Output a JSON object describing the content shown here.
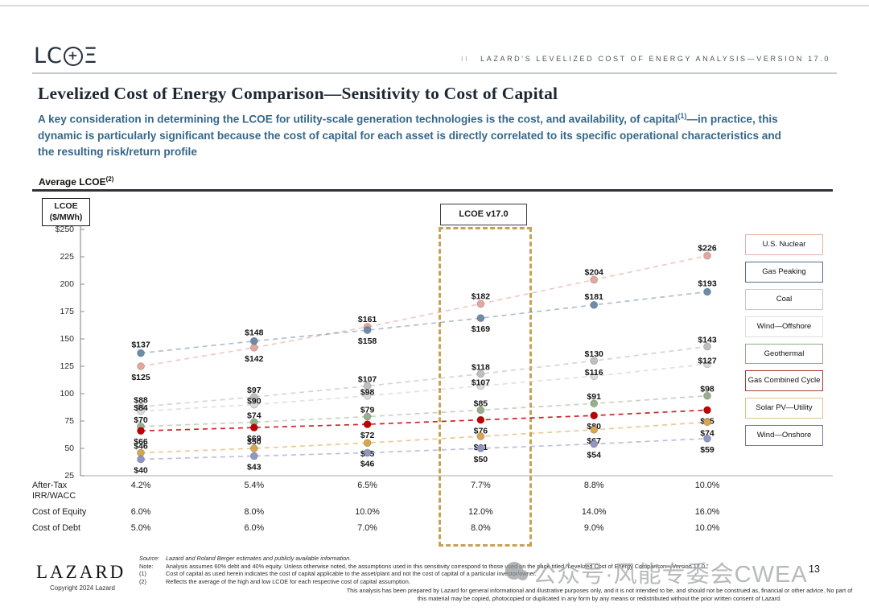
{
  "header": {
    "logo": {
      "left": "LC",
      "plus": "+",
      "xi": "Ξ"
    },
    "eyebrow_prefix": "II",
    "eyebrow": "LAZARD'S LEVELIZED COST OF ENERGY ANALYSIS—VERSION 17.0"
  },
  "title": "Levelized Cost of Energy Comparison—Sensitivity to Cost of Capital",
  "subtitle": {
    "before_sup": "A key consideration in determining the LCOE for utility-scale generation technologies is the cost, and availability, of capital",
    "sup": "(1)",
    "after_sup": "—in practice, this dynamic is particularly significant because the cost of capital for each asset is directly correlated to its specific operational characteristics and the resulting risk/return profile"
  },
  "section_label": {
    "text": "Average LCOE",
    "sup": "(2)"
  },
  "chart_data": {
    "type": "line",
    "title": "Average LCOE",
    "y_axis": {
      "label_line1": "LCOE",
      "label_line2": "($/MWh)",
      "ticks": [
        "$250",
        "225",
        "200",
        "175",
        "150",
        "125",
        "100",
        "75",
        "50",
        "25"
      ],
      "tick_values": [
        250,
        225,
        200,
        175,
        150,
        125,
        100,
        75,
        50,
        25
      ],
      "min": 25,
      "max": 250
    },
    "x_categories": [
      "4.2%",
      "5.4%",
      "6.5%",
      "7.7%",
      "8.8%",
      "10.0%"
    ],
    "series": [
      {
        "name": "U.S. Nuclear",
        "color": "#E5A79D",
        "line_opacity": 0.6,
        "values": [
          125,
          142,
          161,
          182,
          204,
          226
        ],
        "label_pos": [
          "B",
          "B",
          "A",
          "A",
          "A",
          "A"
        ],
        "dy_above": -9,
        "dy_below": 14
      },
      {
        "name": "Gas Peaking",
        "color": "#6C8CA8",
        "line_opacity": 0.55,
        "values": [
          137,
          148,
          158,
          169,
          181,
          193
        ],
        "label_pos": [
          "A",
          "A",
          "B",
          "B",
          "A",
          "A"
        ],
        "dy_above": -10,
        "dy_below": 14
      },
      {
        "name": "Coal",
        "color": "#BFBFBF",
        "line_opacity": 0.65,
        "values": [
          88,
          97,
          107,
          118,
          130,
          143
        ],
        "label_pos": [
          "A",
          "A",
          "A",
          "A",
          "A",
          "A"
        ],
        "dy_above": -8,
        "dy_below": 14
      },
      {
        "name": "Wind—Offshore",
        "color": "#DADADA",
        "line_opacity": 0.8,
        "values": [
          84,
          90,
          98,
          107,
          116,
          127
        ],
        "label_pos": [
          "A",
          "A",
          "A",
          "A",
          "A",
          "A"
        ],
        "dy_above": -4,
        "dy_below": 14
      },
      {
        "name": "Geothermal",
        "color": "#96B08D",
        "line_opacity": 0.55,
        "values": [
          70,
          74,
          79,
          85,
          91,
          98
        ],
        "label_pos": [
          "A",
          "A",
          "A",
          "A",
          "A",
          "A"
        ],
        "dy_above": -8,
        "dy_below": 14
      },
      {
        "name": "Gas Combined Cycle",
        "color": "#C00000",
        "line_opacity": 0.85,
        "values": [
          66,
          69,
          72,
          76,
          80,
          85
        ],
        "label_pos": [
          "B",
          "B",
          "B",
          "B",
          "B",
          "B"
        ],
        "dy_above": -8,
        "dy_below": 14
      },
      {
        "name": "Solar PV—Utility",
        "color": "#D8A74D",
        "line_opacity": 0.6,
        "values": [
          46,
          50,
          55,
          61,
          67,
          74
        ],
        "label_pos": [
          "A",
          "A",
          "B",
          "B",
          "B",
          "B"
        ],
        "dy_above": -8,
        "dy_below": 14
      },
      {
        "name": "Wind—Onshore",
        "color": "#9097C5",
        "line_opacity": 0.6,
        "values": [
          40,
          43,
          46,
          50,
          54,
          59
        ],
        "label_pos": [
          "B",
          "B",
          "B",
          "B",
          "B",
          "B"
        ],
        "dy_above": -8,
        "dy_below": 14
      }
    ],
    "legend": [
      {
        "label": "U.S. Nuclear",
        "border_color": "#E7B1A6"
      },
      {
        "label": "Gas Peaking",
        "border_color": "#4F7293"
      },
      {
        "label": "Coal",
        "border_color": "#C8C8C8"
      },
      {
        "label": "Wind—Offshore",
        "border_color": "#DEDEDE"
      },
      {
        "label": "Geothermal",
        "border_color": "#8FAC85"
      },
      {
        "label": "Gas Combined Cycle",
        "border_color": "#A93B32"
      },
      {
        "label": "Solar PV—Utility",
        "border_color": "#DFC08C"
      },
      {
        "label": "Wind—Onshore",
        "border_color": "#707A97"
      }
    ],
    "highlight": {
      "label": "LCOE v17.0",
      "column_index": 3
    },
    "x_table": [
      {
        "label": "After-Tax\nIRR/WACC",
        "values": [
          "4.2%",
          "5.4%",
          "6.5%",
          "7.7%",
          "8.8%",
          "10.0%"
        ]
      },
      {
        "label": "Cost of Equity",
        "values": [
          "6.0%",
          "8.0%",
          "10.0%",
          "12.0%",
          "14.0%",
          "16.0%"
        ]
      },
      {
        "label": "Cost of Debt",
        "values": [
          "5.0%",
          "6.0%",
          "7.0%",
          "8.0%",
          "9.0%",
          "10.0%"
        ]
      }
    ]
  },
  "footer": {
    "wordmark": "LAZARD",
    "copyright": "Copyright 2024 Lazard",
    "notes": [
      {
        "label": "Source:",
        "text": "Lazard and Roland Berger estimates and publicly available information.",
        "italic": true
      },
      {
        "label": "Note:",
        "text": "Analysis assumes 60% debt and 40% equity. Unless otherwise noted, the assumptions used in this sensitivity correspond to those used on the page titled “Levelized Cost of Energy Comparison—Version 17.0.”"
      },
      {
        "label": "(1)",
        "text": "Cost of capital as used herein indicates the cost of capital applicable to the asset/plant and not the cost of capital of a particular investor/owner."
      },
      {
        "label": "(2)",
        "text": "Reflects the average of the high and low LCOE for each respective cost of capital assumption."
      }
    ],
    "disclaimer": "This analysis has been prepared by Lazard for general informational and illustrative purposes only, and it is not intended to be, and should not be construed as, financial or other advice. No part of this material may be copied, photocopied or duplicated in any form by any means or redistributed without the prior written consent of Lazard."
  },
  "watermark": "公众号·风能专委会CWEA",
  "page_number": "13"
}
